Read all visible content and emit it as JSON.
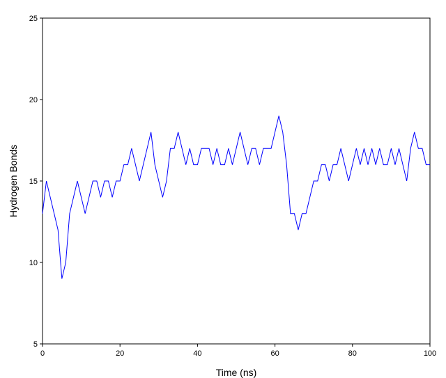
{
  "chart_data": {
    "type": "line",
    "title": "",
    "xlabel": "Time (ns)",
    "ylabel": "Hydrogen Bonds",
    "xlim": [
      0,
      100
    ],
    "ylim": [
      5,
      25
    ],
    "xticks": [
      0,
      20,
      40,
      60,
      80,
      100
    ],
    "yticks": [
      5,
      10,
      15,
      20,
      25
    ],
    "xtick_labels": [
      "0",
      "20",
      "40",
      "60",
      "80",
      "100"
    ],
    "ytick_labels": [
      "5",
      "10",
      "15",
      "20",
      "25"
    ],
    "grid": false,
    "legend": "none",
    "line_color": "#0000ff",
    "series": [
      {
        "x": [
          0,
          1,
          2,
          3,
          4,
          5,
          6,
          7,
          8,
          9,
          10,
          11,
          12,
          13,
          14,
          15,
          16,
          17,
          18,
          19,
          20,
          21,
          22,
          23,
          24,
          25,
          26,
          27,
          28,
          29,
          30,
          31,
          32,
          33,
          34,
          35,
          36,
          37,
          38,
          39,
          40,
          41,
          42,
          43,
          44,
          45,
          46,
          47,
          48,
          49,
          50,
          51,
          52,
          53,
          54,
          55,
          56,
          57,
          58,
          59,
          60,
          61,
          62,
          63,
          64,
          65,
          66,
          67,
          68,
          69,
          70,
          71,
          72,
          73,
          74,
          75,
          76,
          77,
          78,
          79,
          80,
          81,
          82,
          83,
          84,
          85,
          86,
          87,
          88,
          89,
          90,
          91,
          92,
          93,
          94,
          95,
          96,
          97,
          98,
          99,
          100
        ],
        "y": [
          13,
          15,
          14,
          13,
          12,
          9,
          10,
          13,
          14,
          15,
          14,
          13,
          14,
          15,
          15,
          14,
          15,
          15,
          14,
          15,
          15,
          16,
          16,
          17,
          16,
          15,
          16,
          17,
          18,
          16,
          15,
          14,
          15,
          17,
          17,
          18,
          17,
          16,
          17,
          16,
          16,
          17,
          17,
          17,
          16,
          17,
          16,
          16,
          17,
          16,
          17,
          18,
          17,
          16,
          17,
          17,
          16,
          17,
          17,
          17,
          18,
          19,
          18,
          16,
          13,
          13,
          12,
          13,
          13,
          14,
          15,
          15,
          16,
          16,
          15,
          16,
          16,
          17,
          16,
          15,
          16,
          17,
          16,
          17,
          16,
          17,
          16,
          17,
          16,
          16,
          17,
          16,
          17,
          16,
          15,
          17,
          18,
          17,
          17,
          16,
          16
        ]
      }
    ]
  }
}
